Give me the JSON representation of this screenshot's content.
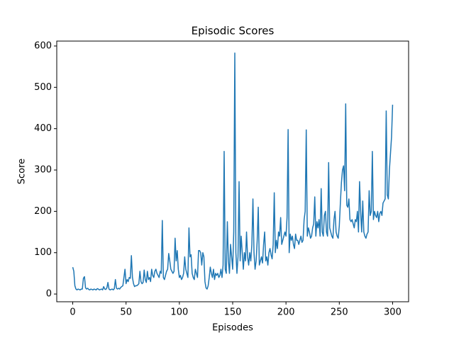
{
  "chart_data": {
    "type": "line",
    "title": "Episodic Scores",
    "x_label": "Episodes",
    "y_label": "Score",
    "x": [
      0,
      1,
      2,
      3,
      4,
      5,
      6,
      7,
      8,
      9,
      10,
      11,
      12,
      13,
      14,
      15,
      16,
      17,
      18,
      19,
      20,
      21,
      22,
      23,
      24,
      25,
      26,
      27,
      28,
      29,
      30,
      31,
      32,
      33,
      34,
      35,
      36,
      37,
      38,
      39,
      40,
      41,
      42,
      43,
      44,
      45,
      46,
      47,
      48,
      49,
      50,
      51,
      52,
      53,
      54,
      55,
      56,
      57,
      58,
      59,
      60,
      61,
      62,
      63,
      64,
      65,
      66,
      67,
      68,
      69,
      70,
      71,
      72,
      73,
      74,
      75,
      76,
      77,
      78,
      79,
      80,
      81,
      82,
      83,
      84,
      85,
      86,
      87,
      88,
      89,
      90,
      91,
      92,
      93,
      94,
      95,
      96,
      97,
      98,
      99,
      100,
      101,
      102,
      103,
      104,
      105,
      106,
      107,
      108,
      109,
      110,
      111,
      112,
      113,
      114,
      115,
      116,
      117,
      118,
      119,
      120,
      121,
      122,
      123,
      124,
      125,
      126,
      127,
      128,
      129,
      130,
      131,
      132,
      133,
      134,
      135,
      136,
      137,
      138,
      139,
      140,
      141,
      142,
      143,
      144,
      145,
      146,
      147,
      148,
      149,
      150,
      151,
      152,
      153,
      154,
      155,
      156,
      157,
      158,
      159,
      160,
      161,
      162,
      163,
      164,
      165,
      166,
      167,
      168,
      169,
      170,
      171,
      172,
      173,
      174,
      175,
      176,
      177,
      178,
      179,
      180,
      181,
      182,
      183,
      184,
      185,
      186,
      187,
      188,
      189,
      190,
      191,
      192,
      193,
      194,
      195,
      196,
      197,
      198,
      199,
      200,
      201,
      202,
      203,
      204,
      205,
      206,
      207,
      208,
      209,
      210,
      211,
      212,
      213,
      214,
      215,
      216,
      217,
      218,
      219,
      220,
      221,
      222,
      223,
      224,
      225,
      226,
      227,
      228,
      229,
      230,
      231,
      232,
      233,
      234,
      235,
      236,
      237,
      238,
      239,
      240,
      241,
      242,
      243,
      244,
      245,
      246,
      247,
      248,
      249,
      250,
      251,
      252,
      253,
      254,
      255,
      256,
      257,
      258,
      259,
      260,
      261,
      262,
      263,
      264,
      265,
      266,
      267,
      268,
      269,
      270,
      271,
      272,
      273,
      274,
      275,
      276,
      277,
      278,
      279,
      280,
      281,
      282,
      283,
      284,
      285,
      286,
      287,
      288,
      289,
      290,
      291,
      292,
      293,
      294,
      295,
      296,
      297,
      298,
      299,
      300
    ],
    "series": [
      {
        "name": "Score",
        "color": "#1f77b4",
        "values": [
          65,
          55,
          20,
          12,
          10,
          12,
          11,
          10,
          12,
          12,
          38,
          42,
          15,
          12,
          14,
          11,
          10,
          12,
          11,
          10,
          12,
          11,
          10,
          13,
          12,
          10,
          11,
          12,
          10,
          18,
          12,
          11,
          15,
          28,
          12,
          10,
          11,
          12,
          10,
          13,
          35,
          14,
          12,
          14,
          12,
          16,
          18,
          20,
          40,
          60,
          25,
          35,
          30,
          40,
          38,
          93,
          40,
          25,
          18,
          20,
          20,
          22,
          25,
          55,
          30,
          25,
          28,
          58,
          35,
          28,
          55,
          35,
          40,
          30,
          60,
          45,
          40,
          55,
          60,
          50,
          45,
          40,
          55,
          50,
          178,
          40,
          35,
          45,
          55,
          60,
          98,
          80,
          60,
          55,
          50,
          55,
          135,
          80,
          105,
          60,
          40,
          45,
          35,
          40,
          50,
          90,
          60,
          50,
          40,
          160,
          90,
          95,
          50,
          40,
          35,
          60,
          50,
          40,
          105,
          105,
          100,
          70,
          100,
          90,
          30,
          15,
          12,
          20,
          40,
          65,
          50,
          40,
          60,
          35,
          50,
          45,
          50,
          40,
          45,
          60,
          40,
          70,
          345,
          60,
          50,
          175,
          80,
          50,
          120,
          90,
          60,
          150,
          583,
          100,
          50,
          90,
          272,
          80,
          140,
          100,
          60,
          100,
          80,
          150,
          90,
          70,
          100,
          80,
          120,
          230,
          100,
          60,
          80,
          130,
          210,
          70,
          80,
          90,
          75,
          120,
          150,
          80,
          90,
          70,
          100,
          110,
          95,
          85,
          120,
          245,
          100,
          130,
          110,
          150,
          140,
          185,
          120,
          130,
          140,
          150,
          140,
          185,
          398,
          100,
          145,
          130,
          140,
          120,
          110,
          145,
          130,
          130,
          120,
          130,
          140,
          125,
          130,
          180,
          200,
          397,
          140,
          160,
          150,
          135,
          140,
          160,
          170,
          235,
          140,
          175,
          160,
          180,
          140,
          255,
          150,
          140,
          190,
          200,
          150,
          140,
          318,
          160,
          150,
          140,
          135,
          180,
          200,
          150,
          140,
          135,
          165,
          220,
          270,
          300,
          310,
          250,
          460,
          215,
          210,
          230,
          180,
          175,
          180,
          170,
          160,
          180,
          175,
          200,
          150,
          272,
          200,
          150,
          225,
          150,
          140,
          135,
          145,
          150,
          250,
          190,
          200,
          345,
          180,
          200,
          190,
          185,
          200,
          175,
          195,
          200,
          190,
          220,
          225,
          230,
          443,
          240,
          230,
          300,
          340,
          380,
          458
        ]
      }
    ],
    "xlim": [
      -15,
      315
    ],
    "ylim": [
      -18.7,
      611.9
    ],
    "xticks": [
      0,
      50,
      100,
      150,
      200,
      250,
      300
    ],
    "yticks": [
      0,
      100,
      200,
      300,
      400,
      500,
      600
    ]
  }
}
